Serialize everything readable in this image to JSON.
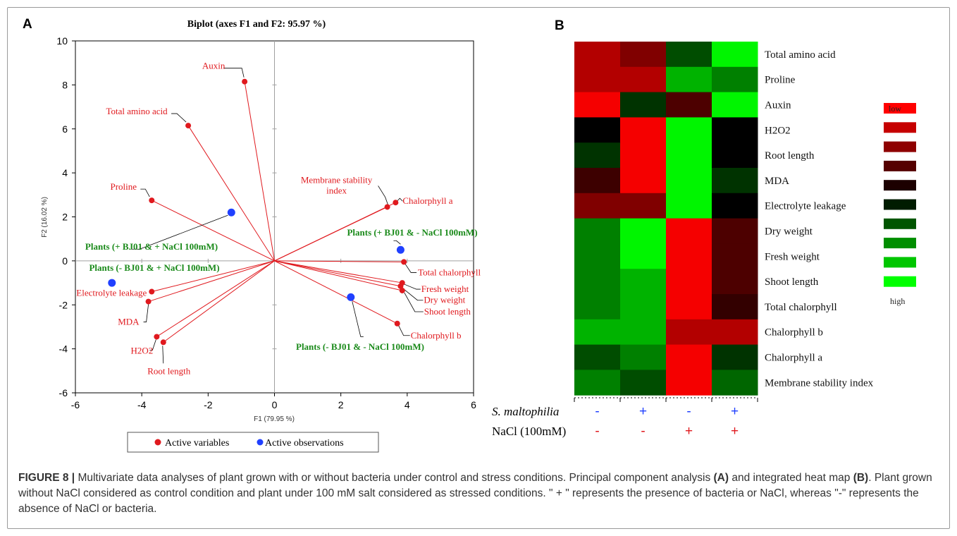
{
  "colors": {
    "variable": "#e0191e",
    "observation": "#2040ff",
    "observation_label": "#1a8a1a",
    "axis": "#000000",
    "minor_axis": "#a0a0a0",
    "heat_high": "#00ff00",
    "heat_mid": "#000000",
    "heat_low": "#ff0000",
    "minus_sign_blue": "#2040ff",
    "minus_sign_red": "#e0191e"
  },
  "panel_a": {
    "label": "A",
    "title": "Biplot (axes F1 and F2: 95.97 %)",
    "xlabel": "F1 (79.95 %)",
    "ylabel": "F2 (16.02 %)",
    "legend": [
      "Active variables",
      "Active observations"
    ]
  },
  "panel_b": {
    "label": "B",
    "legend_low": "low",
    "legend_high": "high",
    "bottom_row1_label": "S. maltophilia",
    "bottom_row2_label": "NaCl (100mM)",
    "bottom_row1_signs": [
      "-",
      "+",
      "-",
      "+"
    ],
    "bottom_row2_signs": [
      "-",
      "-",
      "+",
      "+"
    ]
  },
  "chart_data": [
    {
      "type": "scatter",
      "title": "Biplot (axes F1 and F2: 95.97 %)",
      "xlabel": "F1 (79.95 %)",
      "ylabel": "F2 (16.02 %)",
      "xlim": [
        -6,
        6
      ],
      "ylim": [
        -6,
        10
      ],
      "xticks": [
        -6,
        -4,
        -2,
        0,
        2,
        4,
        6
      ],
      "yticks": [
        -6,
        -4,
        -2,
        0,
        2,
        4,
        6,
        8,
        10
      ],
      "grid": false,
      "legend_position": "bottom",
      "series": [
        {
          "name": "Active variables",
          "points": [
            {
              "label": "Auxin",
              "x": -0.9,
              "y": 8.15
            },
            {
              "label": "Total amino acid",
              "x": -2.6,
              "y": 6.15
            },
            {
              "label": "Proline",
              "x": -3.7,
              "y": 2.75
            },
            {
              "label": "Membrane stability index",
              "x": 3.4,
              "y": 2.45
            },
            {
              "label": "Chalorphyll a",
              "x": 3.65,
              "y": 2.65
            },
            {
              "label": "Total chalorphyll",
              "x": 3.9,
              "y": -0.05
            },
            {
              "label": "Fresh weight",
              "x": 3.85,
              "y": -1.0
            },
            {
              "label": "Dry weight",
              "x": 3.8,
              "y": -1.15
            },
            {
              "label": "Shoot length",
              "x": 3.85,
              "y": -1.35
            },
            {
              "label": "Chalorphyll b",
              "x": 3.7,
              "y": -2.85
            },
            {
              "label": "Electrolyte leakage",
              "x": -3.7,
              "y": -1.4
            },
            {
              "label": "MDA",
              "x": -3.8,
              "y": -1.85
            },
            {
              "label": "H2O2",
              "x": -3.55,
              "y": -3.45
            },
            {
              "label": "Root length",
              "x": -3.35,
              "y": -3.7
            }
          ]
        },
        {
          "name": "Active observations",
          "points": [
            {
              "label": "Plants (+ BJ01 & + NaCl 100mM)",
              "x": -1.3,
              "y": 2.2
            },
            {
              "label": "Plants (- BJ01 & + NaCl 100mM)",
              "x": -4.9,
              "y": -1.0
            },
            {
              "label": "Plants (+ BJ01 & - NaCl 100mM)",
              "x": 3.8,
              "y": 0.5
            },
            {
              "label": "Plants (- BJ01 & - NaCl 100mM)",
              "x": 2.3,
              "y": -1.65
            }
          ]
        }
      ]
    },
    {
      "type": "heatmap",
      "rows": [
        "Total amino acid",
        "Proline",
        "Auxin",
        "H2O2",
        "Root length",
        "MDA",
        "Electrolyte leakage",
        "Dry weight",
        "Fresh weight",
        "Shoot length",
        "Total chalorphyll",
        "Chalorphyll b",
        "Chalorphyll a",
        "Membrane stability index"
      ],
      "columns": [
        "S. maltophilia - / NaCl -",
        "S. maltophilia + / NaCl -",
        "S. maltophilia - / NaCl +",
        "S. maltophilia + / NaCl +"
      ],
      "scale": [
        "low",
        "high"
      ],
      "values": [
        [
          0.15,
          0.25,
          0.65,
          0.98
        ],
        [
          0.15,
          0.15,
          0.85,
          0.75
        ],
        [
          0.02,
          0.6,
          0.35,
          0.98
        ],
        [
          0.5,
          0.02,
          0.98,
          0.5
        ],
        [
          0.6,
          0.02,
          0.98,
          0.5
        ],
        [
          0.38,
          0.02,
          0.98,
          0.6
        ],
        [
          0.25,
          0.25,
          0.98,
          0.5
        ],
        [
          0.75,
          0.98,
          0.02,
          0.35
        ],
        [
          0.75,
          0.98,
          0.02,
          0.35
        ],
        [
          0.75,
          0.85,
          0.02,
          0.35
        ],
        [
          0.75,
          0.85,
          0.02,
          0.4
        ],
        [
          0.85,
          0.85,
          0.15,
          0.15
        ],
        [
          0.65,
          0.75,
          0.02,
          0.6
        ],
        [
          0.75,
          0.65,
          0.02,
          0.7
        ]
      ]
    }
  ],
  "caption": {
    "figure_label": "FIGURE 8 |",
    "text_1": " Multivariate data analyses of plant grown with or without bacteria under control and stress conditions. Principal component analysis ",
    "ref_a": "(A)",
    "text_2": " and integrated heat map ",
    "ref_b": "(B)",
    "text_3": ". Plant grown without NaCl considered as control condition and plant under 100 mM salt considered as stressed conditions. \" + \" represents the presence of bacteria or NaCl, whereas \"-\" represents the absence of NaCl or bacteria."
  }
}
